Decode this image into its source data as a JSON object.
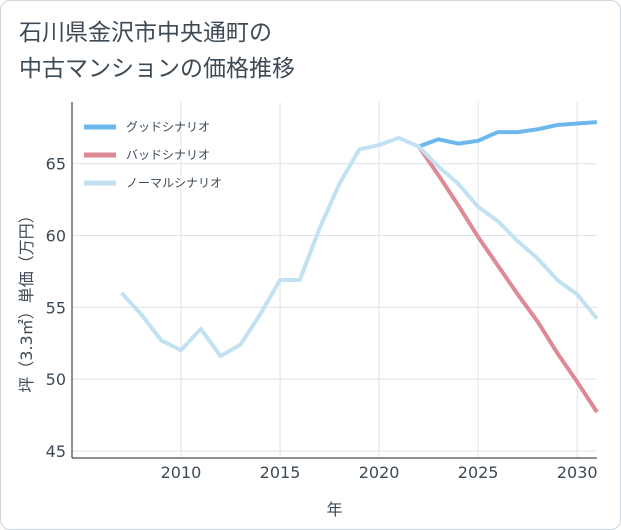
{
  "chart_data": {
    "type": "line",
    "title": "石川県金沢市中央通町の\n中古マンションの価格推移",
    "xlabel": "年",
    "ylabel": "坪（3.3㎡）単価（万円）",
    "xlim": [
      2004.5,
      2031
    ],
    "ylim": [
      44.5,
      69.3
    ],
    "xticks": [
      2010,
      2015,
      2020,
      2025,
      2030
    ],
    "yticks": [
      45,
      50,
      55,
      60,
      65
    ],
    "grid": true,
    "legend_position": "top-left",
    "series": [
      {
        "name": "グッドシナリオ",
        "color": "#6cb8ec",
        "x": [
          2022,
          2023,
          2024,
          2025,
          2026,
          2027,
          2028,
          2029,
          2030,
          2031
        ],
        "y": [
          66.2,
          66.7,
          66.4,
          66.6,
          67.2,
          67.2,
          67.4,
          67.7,
          67.8,
          67.9
        ]
      },
      {
        "name": "バッドシナリオ",
        "color": "#de8a94",
        "x": [
          2022,
          2023,
          2024,
          2025,
          2026,
          2027,
          2028,
          2029,
          2030,
          2031
        ],
        "y": [
          66.2,
          64.2,
          62.1,
          59.9,
          57.9,
          55.9,
          54.0,
          51.8,
          49.8,
          47.7
        ]
      },
      {
        "name": "ノーマルシナリオ",
        "color": "#c2e1f1",
        "x": [
          2007,
          2008,
          2009,
          2010,
          2011,
          2012,
          2013,
          2014,
          2015,
          2016,
          2017,
          2018,
          2019,
          2020,
          2021,
          2022,
          2023,
          2024,
          2025,
          2026,
          2027,
          2028,
          2029,
          2030,
          2031
        ],
        "y": [
          56.0,
          54.5,
          52.7,
          52.0,
          53.5,
          51.6,
          52.4,
          54.5,
          56.9,
          56.9,
          60.5,
          63.6,
          66.0,
          66.3,
          66.8,
          66.2,
          64.8,
          63.6,
          62.0,
          61.0,
          59.6,
          58.4,
          56.9,
          55.9,
          54.2
        ]
      }
    ]
  }
}
